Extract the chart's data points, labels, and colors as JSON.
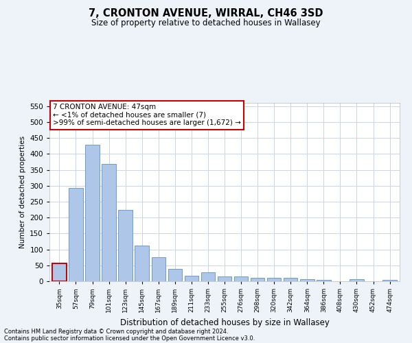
{
  "title": "7, CRONTON AVENUE, WIRRAL, CH46 3SD",
  "subtitle": "Size of property relative to detached houses in Wallasey",
  "xlabel": "Distribution of detached houses by size in Wallasey",
  "ylabel": "Number of detached properties",
  "categories": [
    "35sqm",
    "57sqm",
    "79sqm",
    "101sqm",
    "123sqm",
    "145sqm",
    "167sqm",
    "189sqm",
    "211sqm",
    "233sqm",
    "255sqm",
    "276sqm",
    "298sqm",
    "320sqm",
    "342sqm",
    "364sqm",
    "386sqm",
    "408sqm",
    "430sqm",
    "452sqm",
    "474sqm"
  ],
  "values": [
    55,
    292,
    428,
    368,
    225,
    113,
    75,
    38,
    18,
    27,
    15,
    15,
    10,
    10,
    10,
    6,
    4,
    0,
    6,
    0,
    4
  ],
  "bar_color": "#aec6e8",
  "bar_edge_color": "#5b8fc9",
  "highlight_bar_index": 0,
  "highlight_edge_color": "#cc0000",
  "annotation_text": "7 CRONTON AVENUE: 47sqm\n← <1% of detached houses are smaller (7)\n>99% of semi-detached houses are larger (1,672) →",
  "annotation_box_color": "#ffffff",
  "annotation_box_edge_color": "#cc0000",
  "ylim": [
    0,
    560
  ],
  "yticks": [
    0,
    50,
    100,
    150,
    200,
    250,
    300,
    350,
    400,
    450,
    500,
    550
  ],
  "footer1": "Contains HM Land Registry data © Crown copyright and database right 2024.",
  "footer2": "Contains public sector information licensed under the Open Government Licence v3.0.",
  "bg_color": "#eef2f9",
  "plot_bg_color": "#ffffff",
  "grid_color": "#c8d4e8"
}
